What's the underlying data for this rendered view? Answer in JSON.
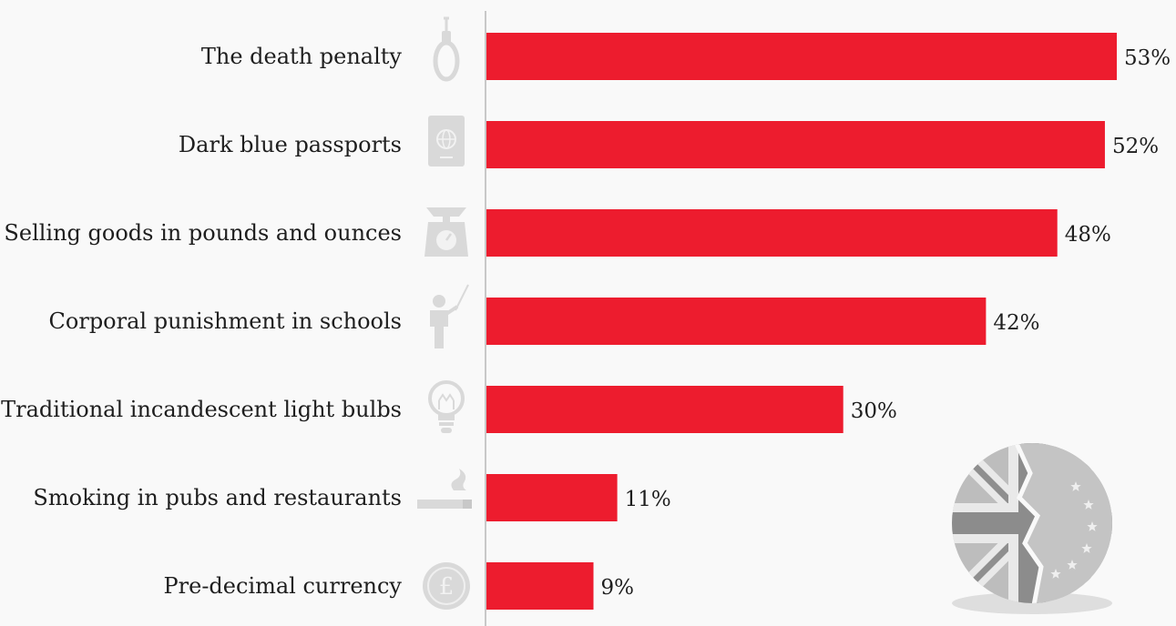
{
  "chart_data": {
    "type": "bar",
    "orientation": "horizontal",
    "categories": [
      "The death penalty",
      "Dark blue passports",
      "Selling goods in pounds and ounces",
      "Corporal punishment in schools",
      "Traditional incandescent light bulbs",
      "Smoking in pubs and restaurants",
      "Pre-decimal currency"
    ],
    "values": [
      53,
      52,
      48,
      42,
      30,
      11,
      9
    ],
    "value_labels": [
      "53%",
      "52%",
      "48%",
      "42%",
      "30%",
      "11%",
      "9%"
    ],
    "unit": "%",
    "xlim": [
      0,
      53
    ],
    "bar_color": "#ed1c2e",
    "grid": false,
    "legend": "none"
  },
  "icons": [
    "noose-icon",
    "passport-icon",
    "weighing-scale-icon",
    "teacher-with-cane-icon",
    "light-bulb-icon",
    "cigarette-icon",
    "pound-coin-icon"
  ],
  "decoration": "broken-union-jack-eu-flag-icon",
  "colors": {
    "bar": "#ed1c2e",
    "icon": "#d9d9d9",
    "axis": "#c8c8c8",
    "background": "#f9f9f9"
  }
}
